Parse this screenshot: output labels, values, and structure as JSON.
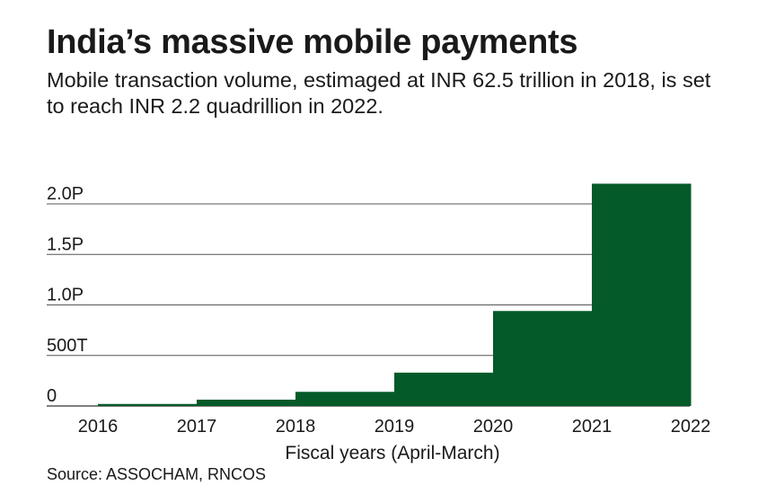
{
  "title": "India’s massive mobile payments",
  "subtitle": "Mobile transaction volume, estimaged at INR 62.5 trillion in 2018, is set to reach INR 2.2 quadrillion in 2022.",
  "source": "Source: ASSOCHAM, RNCOS",
  "colors": {
    "bar": "#055a29",
    "grid": "#555555",
    "text": "#1a1a1a"
  },
  "chart_data": {
    "type": "bar",
    "title": "India’s massive mobile payments",
    "subtitle": "Mobile transaction volume, estimaged at INR 62.5 trillion in 2018, is set to reach INR 2.2 quadrillion in 2022.",
    "xlabel": "Fiscal years (April-March)",
    "ylabel": "",
    "x_ticks": [
      "2016",
      "2017",
      "2018",
      "2019",
      "2020",
      "2021",
      "2022"
    ],
    "y_ticks": [
      {
        "value": 0,
        "label": "0"
      },
      {
        "value": 500,
        "label": "500T"
      },
      {
        "value": 1000,
        "label": "1.0P"
      },
      {
        "value": 1500,
        "label": "1.5P"
      },
      {
        "value": 2000,
        "label": "2.0P"
      }
    ],
    "y_unit": "INR trillion",
    "ylim": [
      0,
      2250
    ],
    "bars": [
      {
        "from": "2016",
        "to": "2017",
        "value": 20
      },
      {
        "from": "2017",
        "to": "2018",
        "value": 62.5
      },
      {
        "from": "2018",
        "to": "2019",
        "value": 140
      },
      {
        "from": "2019",
        "to": "2020",
        "value": 330
      },
      {
        "from": "2020",
        "to": "2021",
        "value": 940
      },
      {
        "from": "2021",
        "to": "2022",
        "value": 2200
      }
    ],
    "grid": true,
    "legend": "none"
  }
}
